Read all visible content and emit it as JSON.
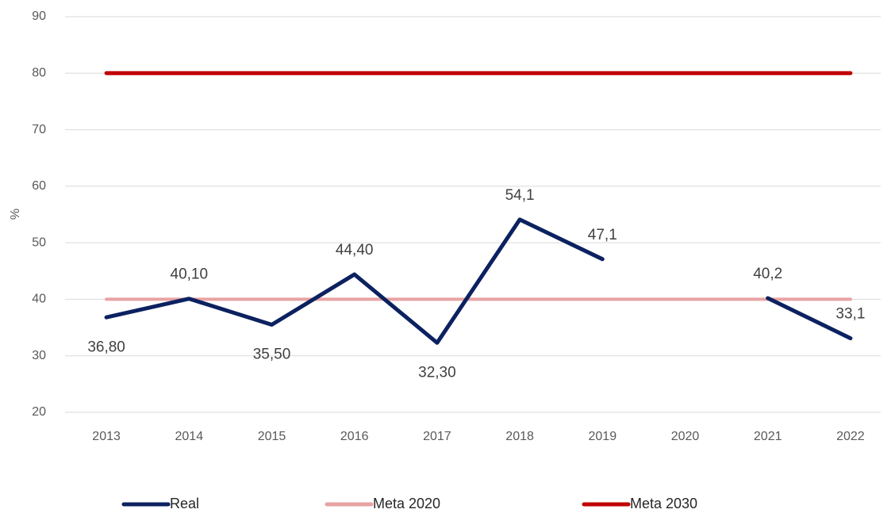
{
  "chart_data": {
    "type": "line",
    "ylabel": "%",
    "categories": [
      "2013",
      "2014",
      "2015",
      "2016",
      "2017",
      "2018",
      "2019",
      "2020",
      "2021",
      "2022"
    ],
    "series": [
      {
        "name": "Real",
        "color": "#0c2160",
        "values": [
          36.8,
          40.1,
          35.5,
          44.4,
          32.3,
          54.1,
          47.1,
          null,
          40.2,
          33.1
        ],
        "value_labels": [
          "36,80",
          "40,10",
          "35,50",
          "44,40",
          "32,30",
          "54,1",
          "47,1",
          null,
          "40,2",
          "33,1"
        ]
      },
      {
        "name": "Meta 2020",
        "color": "#e8a3a3",
        "values": [
          40,
          40,
          40,
          40,
          40,
          40,
          40,
          40,
          40,
          40
        ]
      },
      {
        "name": "Meta 2030",
        "color": "#c00000",
        "values": [
          80,
          80,
          80,
          80,
          80,
          80,
          80,
          80,
          80,
          80
        ]
      }
    ],
    "ylim": [
      20,
      90
    ],
    "yticks": [
      20,
      30,
      40,
      50,
      60,
      70,
      80,
      90
    ],
    "grid": true,
    "legend": "bottom"
  }
}
